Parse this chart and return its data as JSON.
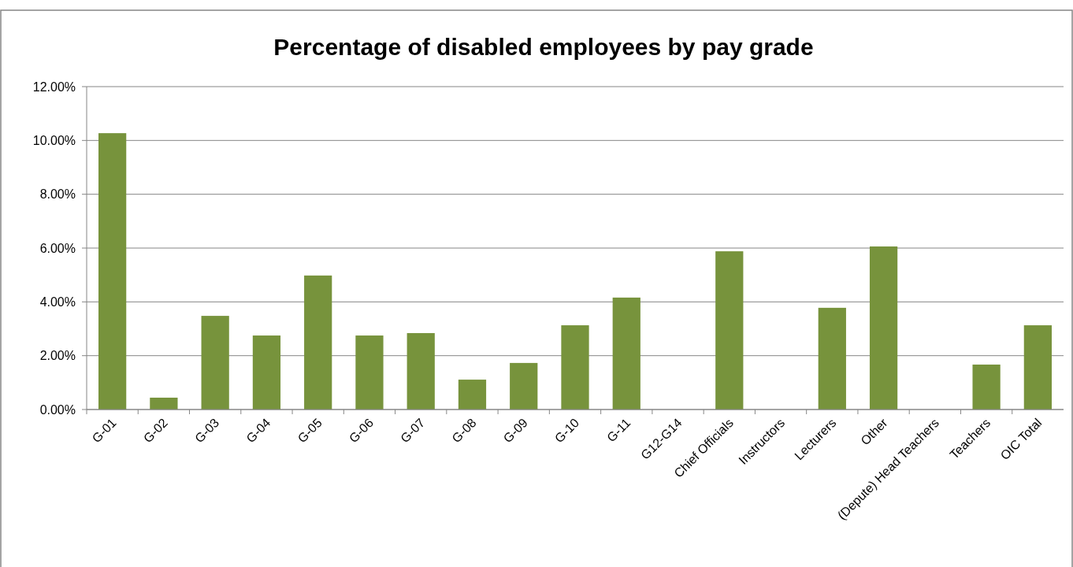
{
  "chart_data": {
    "type": "bar",
    "title": "Percentage of disabled employees by pay grade",
    "categories": [
      "G-01",
      "G-02",
      "G-03",
      "G-04",
      "G-05",
      "G-06",
      "G-07",
      "G-08",
      "G-09",
      "G-10",
      "G-11",
      "G12-G14",
      "Chief Officials",
      "Instructors",
      "Lecturers",
      "Other",
      "(Depute) Head Teachers",
      "Teachers",
      "OIC Total"
    ],
    "values": [
      10.27,
      0.44,
      3.48,
      2.75,
      4.98,
      2.75,
      2.84,
      1.11,
      1.73,
      3.13,
      4.16,
      0,
      5.88,
      0,
      3.78,
      6.06,
      0,
      1.67,
      3.13
    ],
    "color": "#77933c",
    "ylim": [
      0,
      12
    ],
    "yticks": [
      {
        "value": 0,
        "label": "0.00%"
      },
      {
        "value": 2,
        "label": "2.00%"
      },
      {
        "value": 4,
        "label": "4.00%"
      },
      {
        "value": 6,
        "label": "6.00%"
      },
      {
        "value": 8,
        "label": "8.00%"
      },
      {
        "value": 10,
        "label": "10.00%"
      },
      {
        "value": 12,
        "label": "12.00%"
      }
    ],
    "grid": "y"
  }
}
